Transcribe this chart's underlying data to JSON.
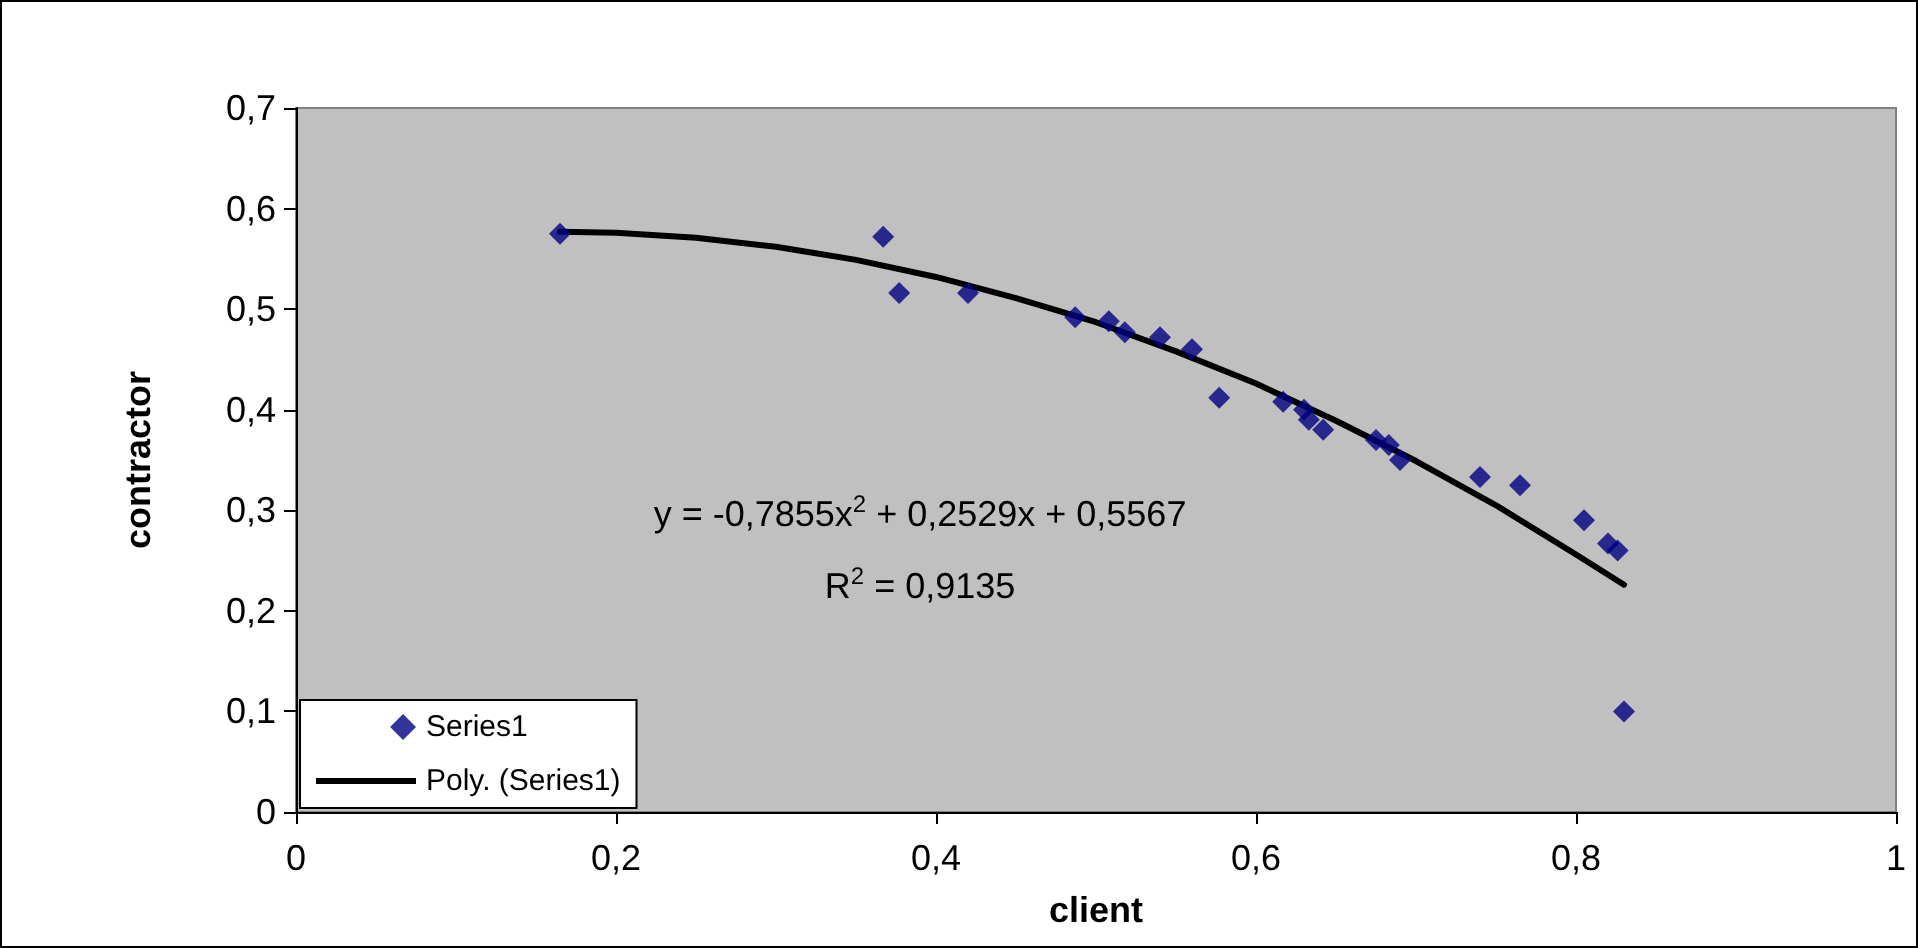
{
  "chart_data": {
    "type": "scatter",
    "xlabel": "client",
    "ylabel": "contractor",
    "annotations": [
      "y = -0,7855x$^{2}$ + 0,2529x + 0,5567",
      "R$^{2}$ = 0,9135"
    ],
    "xlim": [
      0,
      1
    ],
    "xticks": [
      0,
      {
        "value": 0.2,
        "label": "0,2"
      },
      {
        "value": 0.4,
        "label": "0,4"
      },
      {
        "value": 0.6,
        "label": "0,6"
      },
      {
        "value": 0.8,
        "label": "0,8"
      },
      1
    ],
    "ylim": [
      0,
      0.7
    ],
    "yticks": [
      0,
      {
        "value": 0.1,
        "label": "0,1"
      },
      {
        "value": 0.2,
        "label": "0,2"
      },
      {
        "value": 0.3,
        "label": "0,3"
      },
      {
        "value": 0.4,
        "label": "0,4"
      },
      {
        "value": 0.5,
        "label": "0,5"
      },
      {
        "value": 0.6,
        "label": "0,6"
      },
      {
        "value": 0.7,
        "label": "0,7"
      }
    ],
    "grid": false,
    "legend": "bottom left",
    "marker": "diamond",
    "series": [
      {
        "name": "Series1",
        "color": "#000080",
        "x": [
          0.165,
          0.367,
          0.377,
          0.42,
          0.487,
          0.508,
          0.518,
          0.54,
          0.56,
          0.577,
          0.617,
          0.63,
          0.633,
          0.642,
          0.675,
          0.683,
          0.69,
          0.74,
          0.765,
          0.805,
          0.82,
          0.826,
          0.83
        ],
        "values": [
          0.575,
          0.572,
          0.516,
          0.516,
          0.492,
          0.488,
          0.477,
          0.472,
          0.46,
          0.412,
          0.408,
          0.4,
          0.39,
          0.38,
          0.37,
          0.365,
          0.35,
          0.333,
          0.325,
          0.29,
          0.267,
          0.26,
          0.1
        ]
      },
      {
        "name": "Poly. (Series1)",
        "type": "line",
        "marker": "none",
        "line_style": "solid",
        "color": "#000000",
        "x": [
          0.165,
          0.2,
          0.25,
          0.3,
          0.35,
          0.4,
          0.45,
          0.5,
          0.55,
          0.6,
          0.65,
          0.7,
          0.75,
          0.8,
          0.83
        ],
        "values": [
          0.577,
          0.576,
          0.571,
          0.562,
          0.549,
          0.532,
          0.511,
          0.487,
          0.458,
          0.426,
          0.389,
          0.349,
          0.305,
          0.256,
          0.226
        ]
      }
    ]
  }
}
